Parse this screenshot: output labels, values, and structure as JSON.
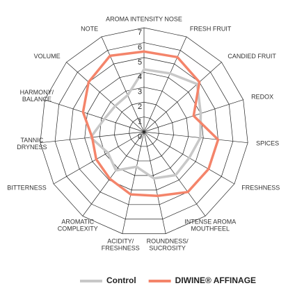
{
  "chart_data": {
    "type": "radar",
    "categories": [
      [
        "AROMA INTENSITY NOSE"
      ],
      [
        "FRESH FRUIT"
      ],
      [
        "CANDIED FRUIT"
      ],
      [
        "REDOX"
      ],
      [
        "SPICES"
      ],
      [
        "FRESHNESS"
      ],
      [
        "INTENSE AROMA",
        "MOUTHFEEL"
      ],
      [
        "ROUNDNESS/",
        "SUCROSITY"
      ],
      [
        "ACIDITY/",
        "FRESHNESS"
      ],
      [
        "AROMATIC",
        "COMPLEXITY"
      ],
      [
        "BITTERNESS"
      ],
      [
        "TANNIC",
        "DRYNESS"
      ],
      [
        "HARMONY/",
        "BALANCE"
      ],
      [
        "VOLUME"
      ],
      [
        "NOTE"
      ]
    ],
    "series": [
      {
        "name": "Control",
        "color": "#c8c8c8",
        "values": [
          4.2,
          4.3,
          4.8,
          4.0,
          3.8,
          3.5,
          3.6,
          3.2,
          2.4,
          3.2,
          2.8,
          3.6,
          2.8,
          2.6,
          2.7
        ]
      },
      {
        "name": "DIWINE® AFFINAGE",
        "color": "#f4846a",
        "values": [
          5.4,
          5.5,
          5.0,
          3.5,
          5.0,
          5.0,
          5.0,
          4.4,
          4.3,
          3.9,
          3.7,
          3.5,
          4.3,
          5.0,
          5.6
        ]
      }
    ],
    "ylim": [
      0,
      7
    ],
    "yticks": [
      0,
      1,
      2,
      3,
      4,
      5,
      6,
      7
    ],
    "grid": true,
    "legend": "bottom"
  }
}
